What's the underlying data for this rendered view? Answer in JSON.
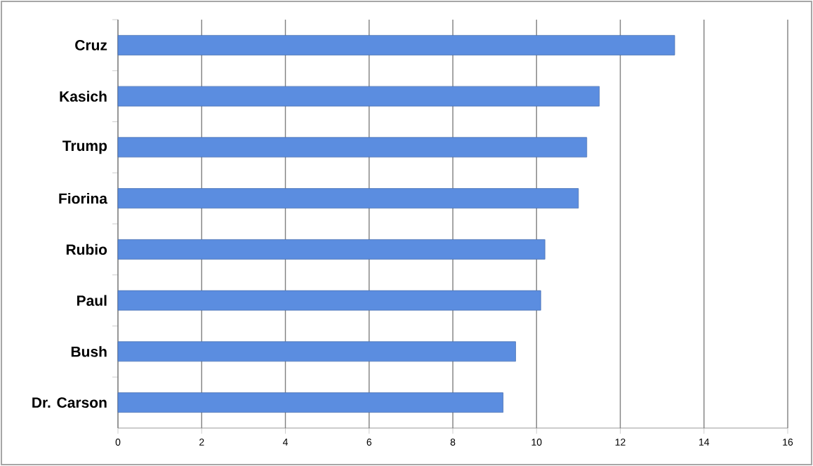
{
  "chart_data": {
    "type": "bar",
    "orientation": "horizontal",
    "categories": [
      "Cruz",
      "Kasich",
      "Trump",
      "Fiorina",
      "Rubio",
      "Paul",
      "Bush",
      "Dr. Carson"
    ],
    "values": [
      13.3,
      11.5,
      11.2,
      11.0,
      10.2,
      10.1,
      9.5,
      9.2
    ],
    "color": "#5b8de0",
    "xlim": [
      0,
      16
    ],
    "xticks": [
      0,
      2,
      4,
      6,
      8,
      10,
      12,
      14,
      16
    ],
    "grid": "x"
  }
}
